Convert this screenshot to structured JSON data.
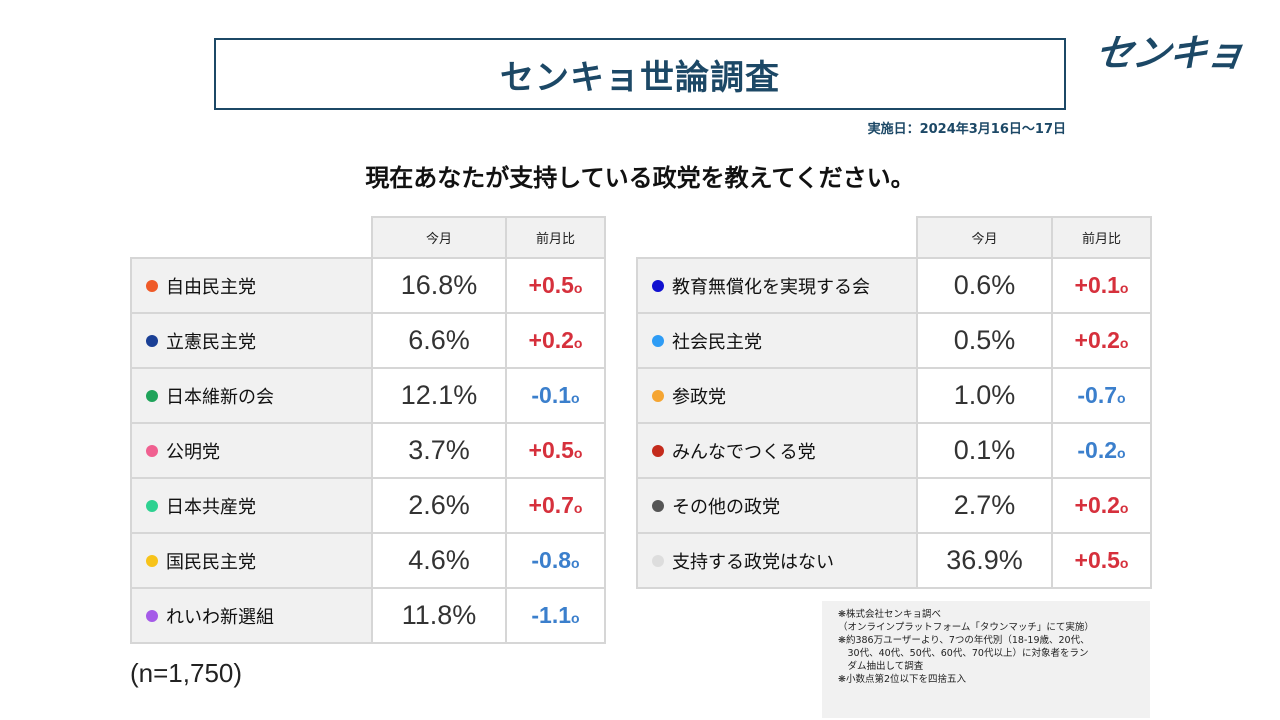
{
  "header": {
    "title": "センキョ世論調査",
    "logo_text": "センキョ",
    "survey_date": "実施日：2024年3月16日～17日"
  },
  "question": "現在あなたが支持している政党を教えてください。",
  "columns": {
    "this_month": "今月",
    "vs_last_month": "前月比"
  },
  "diff_unit": "o",
  "left_parties": [
    {
      "name": "自由民主党",
      "color": "#ef5a28",
      "value": "16.8%",
      "diff": "+0.5",
      "trend": "pos"
    },
    {
      "name": "立憲民主党",
      "color": "#1a3f95",
      "value": "6.6%",
      "diff": "+0.2",
      "trend": "pos"
    },
    {
      "name": "日本維新の会",
      "color": "#1fa35a",
      "value": "12.1%",
      "diff": "-0.1",
      "trend": "neg"
    },
    {
      "name": "公明党",
      "color": "#f06090",
      "value": "3.7%",
      "diff": "+0.5",
      "trend": "pos"
    },
    {
      "name": "日本共産党",
      "color": "#2ed191",
      "value": "2.6%",
      "diff": "+0.7",
      "trend": "pos"
    },
    {
      "name": "国民民主党",
      "color": "#f7c31a",
      "value": "4.6%",
      "diff": "-0.8",
      "trend": "neg"
    },
    {
      "name": "れいわ新選組",
      "color": "#a55be8",
      "value": "11.8%",
      "diff": "-1.1",
      "trend": "neg"
    }
  ],
  "right_parties": [
    {
      "name": "教育無償化を実現する会",
      "color": "#1111d0",
      "value": "0.6%",
      "diff": "+0.1",
      "trend": "pos"
    },
    {
      "name": "社会民主党",
      "color": "#2e9cf5",
      "value": "0.5%",
      "diff": "+0.2",
      "trend": "pos"
    },
    {
      "name": "参政党",
      "color": "#f5a532",
      "value": "1.0%",
      "diff": "-0.7",
      "trend": "neg"
    },
    {
      "name": "みんなでつくる党",
      "color": "#c42b1c",
      "value": "0.1%",
      "diff": "-0.2",
      "trend": "neg"
    },
    {
      "name": "その他の政党",
      "color": "#555555",
      "value": "2.7%",
      "diff": "+0.2",
      "trend": "pos"
    },
    {
      "name": "支持する政党はない",
      "color": "#dddddd",
      "value": "36.9%",
      "diff": "+0.5",
      "trend": "pos"
    }
  ],
  "sample_size": "(n=1,750)",
  "notes": [
    "❋株式会社センキョ調べ",
    "（オンラインプラットフォーム「タウンマッチ」にて実施）",
    "❋約386万ユーザーより、7つの年代別（18-19歳、20代、",
    "　30代、40代、50代、60代、70代以上）に対象者をラン",
    "　ダム抽出して調査",
    "❋小数点第2位以下を四捨五入"
  ]
}
